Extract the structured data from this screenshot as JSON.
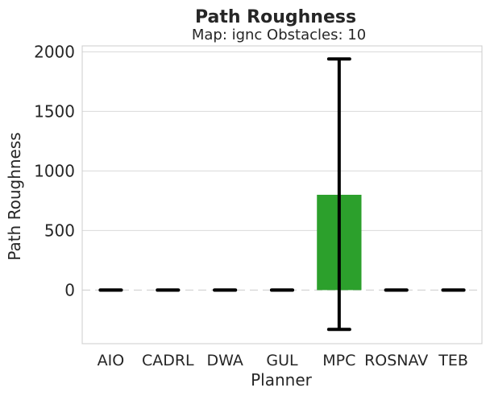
{
  "chart_data": {
    "type": "bar",
    "title": "Path Roughness",
    "subtitle": "Map: ignc Obstacles: 10",
    "xlabel": "Planner",
    "ylabel": "Path Roughness",
    "categories": [
      "AIO",
      "CADRL",
      "DWA",
      "GUL",
      "MPC",
      "ROSNAV",
      "TEB"
    ],
    "series": [
      {
        "values": [
          0,
          0,
          0,
          0,
          800,
          0,
          0
        ],
        "error_low": [
          0,
          0,
          0,
          0,
          -330,
          0,
          0
        ],
        "error_high": [
          0,
          0,
          0,
          0,
          1940,
          0,
          0
        ]
      }
    ],
    "bar_colors": [
      "#1f77b4",
      "#ff7f0e",
      "#2ca02c",
      "#d62728",
      "#2ca02c",
      "#8c564b",
      "#e377c2"
    ],
    "error_color": "#000000",
    "yticks": [
      0,
      500,
      1000,
      1500,
      2000
    ],
    "ylim": [
      -450,
      2050
    ],
    "grid": "horizontal",
    "reference_line": 0
  }
}
